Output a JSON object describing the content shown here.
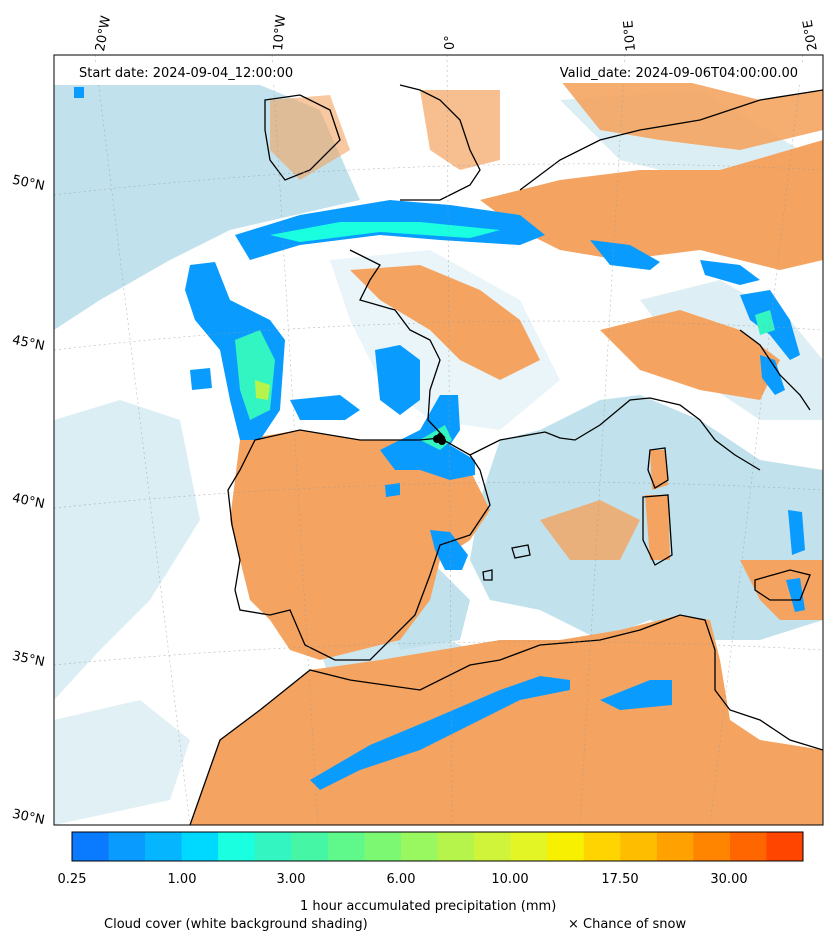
{
  "header": {
    "start_date": "Start date: 2024-09-04_12:00:00",
    "valid_date": "Valid_date: 2024-09-06T04:00:00.00"
  },
  "map": {
    "region": "Western Europe and North Africa",
    "lon_labels": [
      "20°W",
      "10°W",
      "0°",
      "10°E",
      "20°E"
    ],
    "lat_labels": [
      "50°N",
      "45°N",
      "40°N",
      "35°N",
      "30°N"
    ],
    "land_color": "#f4a460",
    "cloud_color": "#add8e6",
    "snow_marker": "black cross marks near 0° 42°N"
  },
  "colorbar": {
    "ticks": [
      "0.25",
      "1.00",
      "3.00",
      "6.00",
      "10.00",
      "17.50",
      "30.00"
    ],
    "colors": [
      "#0a7aff",
      "#0a9bff",
      "#05b6ff",
      "#00d9ff",
      "#19ffe0",
      "#32f5c2",
      "#45f7a4",
      "#5ef98a",
      "#7cf872",
      "#99f760",
      "#b6f44c",
      "#cff43a",
      "#e4f526",
      "#f7f000",
      "#ffd400",
      "#ffbd00",
      "#ffa100",
      "#ff8500",
      "#ff6600",
      "#ff4500"
    ],
    "title": "1 hour accumulated precipitation (mm)"
  },
  "legend": {
    "cloud": "Cloud cover (white background shading)",
    "snow": "× Chance of snow"
  }
}
